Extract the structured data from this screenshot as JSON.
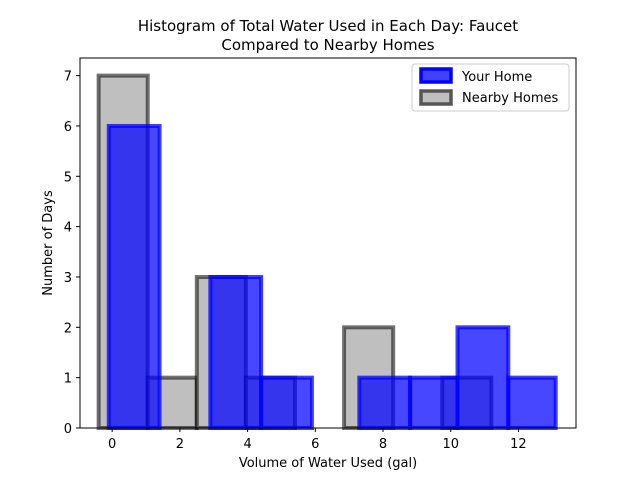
{
  "chart_data": {
    "type": "bar",
    "title_lines": [
      "Histogram of Total Water Used in Each Day: Faucet",
      "Compared to Nearby Homes"
    ],
    "xlabel": "Volume of Water Used (gal)",
    "ylabel": "Number of Days",
    "xlim": [
      -0.95,
      13.7
    ],
    "ylim": [
      0,
      7.35
    ],
    "xticks": [
      0,
      2,
      4,
      6,
      8,
      10,
      12
    ],
    "yticks": [
      0,
      1,
      2,
      3,
      4,
      5,
      6,
      7
    ],
    "grid": false,
    "legend_position": "top-right",
    "series": [
      {
        "name": "Nearby Homes",
        "fill": "#bfbfbf",
        "edge": "#000000",
        "bins": [
          {
            "x0": -0.4,
            "x1": 1.05,
            "value": 7
          },
          {
            "x0": 1.05,
            "x1": 2.5,
            "value": 1
          },
          {
            "x0": 2.5,
            "x1": 3.95,
            "value": 3
          },
          {
            "x0": 3.95,
            "x1": 5.4,
            "value": 1
          },
          {
            "x0": 5.4,
            "x1": 6.85,
            "value": 0
          },
          {
            "x0": 6.85,
            "x1": 8.3,
            "value": 2
          },
          {
            "x0": 8.3,
            "x1": 9.75,
            "value": 0
          },
          {
            "x0": 9.75,
            "x1": 11.2,
            "value": 1
          },
          {
            "x0": 11.2,
            "x1": 12.65,
            "value": 0
          }
        ]
      },
      {
        "name": "Your Home",
        "fill": "#0000ff",
        "edge": "#0000ff",
        "bins": [
          {
            "x0": -0.1,
            "x1": 1.4,
            "value": 6
          },
          {
            "x0": 1.4,
            "x1": 2.9,
            "value": 0
          },
          {
            "x0": 2.9,
            "x1": 4.4,
            "value": 3
          },
          {
            "x0": 4.4,
            "x1": 5.9,
            "value": 1
          },
          {
            "x0": 5.9,
            "x1": 7.3,
            "value": 0
          },
          {
            "x0": 7.3,
            "x1": 8.8,
            "value": 1
          },
          {
            "x0": 8.8,
            "x1": 10.2,
            "value": 1
          },
          {
            "x0": 10.2,
            "x1": 11.7,
            "value": 2
          },
          {
            "x0": 11.7,
            "x1": 13.1,
            "value": 1
          }
        ]
      }
    ],
    "legend": [
      "Your Home",
      "Nearby Homes"
    ]
  }
}
